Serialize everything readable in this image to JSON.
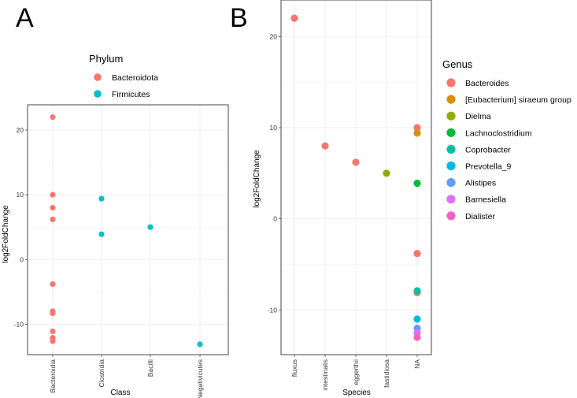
{
  "panels": {
    "A": {
      "letter": "A"
    },
    "B": {
      "letter": "B"
    }
  },
  "colors": {
    "Bacteroidota": "#F8766D",
    "Firmicutes": "#00BFC4",
    "Bacteroides": "#F8766D",
    "[Eubacterium] siraeum group": "#D39200",
    "Dielma": "#93AA00",
    "Lachnoclostridium": "#00BA38",
    "Coprobacter": "#00C19F",
    "Prevotella_9": "#00B9E3",
    "Alistipes": "#619CFF",
    "Barnesiella": "#DB72FB",
    "Dialister": "#FF61C3"
  },
  "chart_data": [
    {
      "type": "scatter",
      "panel": "A",
      "xlabel": "Class",
      "ylabel": "log2FoldChange",
      "categories": [
        "Bacteroidia",
        "Clostridia",
        "Bacilli",
        "Negativicutes"
      ],
      "ylim": [
        -14.7,
        23.9
      ],
      "yticks": [
        -10,
        0,
        10,
        20
      ],
      "grid": true,
      "legend": {
        "title": "Phylum",
        "entries": [
          "Bacteroidota",
          "Firmicutes"
        ],
        "placement": "top"
      },
      "series": [
        {
          "name": "Bacteroidota",
          "points": [
            {
              "x": "Bacteroidia",
              "y": 22.0
            },
            {
              "x": "Bacteroidia",
              "y": 10.0
            },
            {
              "x": "Bacteroidia",
              "y": 8.0
            },
            {
              "x": "Bacteroidia",
              "y": 6.2
            },
            {
              "x": "Bacteroidia",
              "y": -3.8
            },
            {
              "x": "Bacteroidia",
              "y": -8.0
            },
            {
              "x": "Bacteroidia",
              "y": -8.3
            },
            {
              "x": "Bacteroidia",
              "y": -11.1
            },
            {
              "x": "Bacteroidia",
              "y": -12.1
            },
            {
              "x": "Bacteroidia",
              "y": -12.6
            }
          ]
        },
        {
          "name": "Firmicutes",
          "points": [
            {
              "x": "Clostridia",
              "y": 9.4
            },
            {
              "x": "Clostridia",
              "y": 3.9
            },
            {
              "x": "Bacilli",
              "y": 5.0
            },
            {
              "x": "Negativicutes",
              "y": -13.1
            }
          ]
        }
      ]
    },
    {
      "type": "scatter",
      "panel": "B",
      "xlabel": "Species",
      "ylabel": "log2FoldChange",
      "categories": [
        "fluxus",
        "intestinalis",
        "eggerthii",
        "fastidiosa",
        "NA"
      ],
      "ylim": [
        -14.9,
        24.0
      ],
      "yticks": [
        -10,
        0,
        10,
        20
      ],
      "grid": true,
      "legend": {
        "title": "Genus",
        "entries": [
          "Bacteroides",
          "[Eubacterium] siraeum group",
          "Dielma",
          "Lachnoclostridium",
          "Coprobacter",
          "Prevotella_9",
          "Alistipes",
          "Barnesiella",
          "Dialister"
        ],
        "placement": "right"
      },
      "series": [
        {
          "name": "Bacteroides",
          "points": [
            {
              "x": "fluxus",
              "y": 22.0
            },
            {
              "x": "intestinalis",
              "y": 8.0
            },
            {
              "x": "eggerthii",
              "y": 6.2
            },
            {
              "x": "NA",
              "y": 10.0
            },
            {
              "x": "NA",
              "y": -3.8
            },
            {
              "x": "NA",
              "y": -8.1
            }
          ]
        },
        {
          "name": "[Eubacterium] siraeum group",
          "points": [
            {
              "x": "NA",
              "y": 9.4
            }
          ]
        },
        {
          "name": "Dielma",
          "points": [
            {
              "x": "fastidiosa",
              "y": 5.0
            }
          ]
        },
        {
          "name": "Lachnoclostridium",
          "points": [
            {
              "x": "NA",
              "y": 3.9
            }
          ]
        },
        {
          "name": "Coprobacter",
          "points": [
            {
              "x": "NA",
              "y": -7.9
            }
          ]
        },
        {
          "name": "Prevotella_9",
          "points": [
            {
              "x": "NA",
              "y": -11.0
            }
          ]
        },
        {
          "name": "Alistipes",
          "points": [
            {
              "x": "NA",
              "y": -12.0
            }
          ]
        },
        {
          "name": "Barnesiella",
          "points": [
            {
              "x": "NA",
              "y": -12.5
            }
          ]
        },
        {
          "name": "Dialister",
          "points": [
            {
              "x": "NA",
              "y": -13.0
            }
          ]
        }
      ]
    }
  ]
}
